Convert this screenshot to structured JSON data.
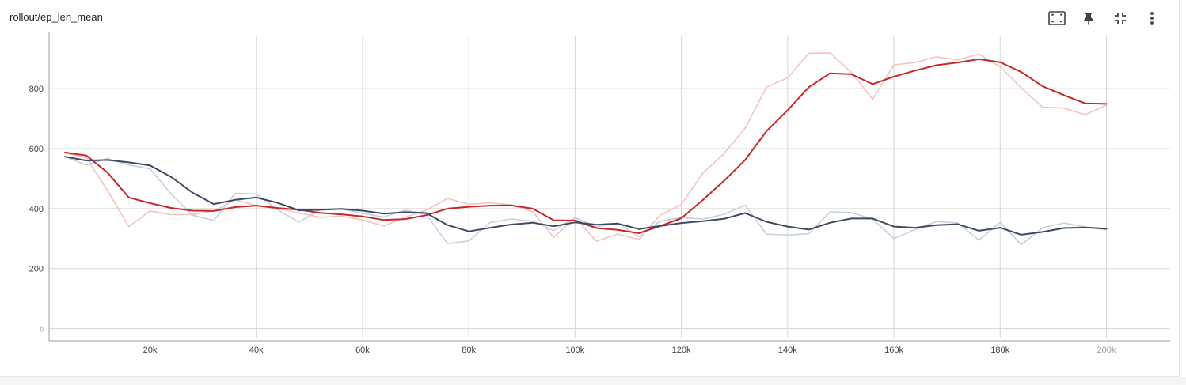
{
  "header": {
    "title": "rollout/ep_len_mean"
  },
  "toolbar": {
    "icons": [
      "fit-domain-icon",
      "pin-icon",
      "collapse-icon",
      "more-vert-icon"
    ]
  },
  "colors": {
    "red": "#c62828",
    "red_raw": "#f4c2c2",
    "slate": "#3d4a63",
    "slate_raw": "#c9cfdc",
    "grid": "#d6d6d6"
  },
  "chart_data": {
    "type": "line",
    "title": "rollout/ep_len_mean",
    "xlabel": "",
    "ylabel": "",
    "xlim": [
      1000,
      212000
    ],
    "ylim": [
      -30,
      990
    ],
    "x_ticks": [
      20000,
      40000,
      60000,
      80000,
      100000,
      120000,
      140000,
      160000,
      180000,
      200000
    ],
    "x_tick_labels": [
      "20k",
      "40k",
      "60k",
      "80k",
      "100k",
      "120k",
      "140k",
      "160k",
      "180k",
      "200k"
    ],
    "y_ticks": [
      0,
      200,
      400,
      600,
      800
    ],
    "y_tick_labels": [
      "0",
      "200",
      "400",
      "600",
      "800"
    ],
    "grid": true,
    "x": [
      4000,
      8000,
      12000,
      16000,
      20000,
      24000,
      28000,
      32000,
      36000,
      40000,
      44000,
      48000,
      52000,
      56000,
      60000,
      64000,
      68000,
      72000,
      76000,
      80000,
      84000,
      88000,
      92000,
      96000,
      100000,
      104000,
      108000,
      112000,
      116000,
      120000,
      124000,
      128000,
      132000,
      136000,
      140000,
      144000,
      148000,
      152000,
      156000,
      160000,
      164000,
      168000,
      172000,
      176000,
      180000,
      184000,
      188000,
      192000,
      196000,
      200000
    ],
    "series": [
      {
        "kind": "smoothed",
        "color": "#c62828",
        "values": [
          587,
          577,
          520,
          437,
          418,
          402,
          393,
          392,
          405,
          410,
          402,
          396,
          386,
          381,
          374,
          362,
          365,
          378,
          400,
          406,
          410,
          411,
          400,
          361,
          360,
          335,
          329,
          318,
          342,
          368,
          428,
          492,
          562,
          658,
          728,
          805,
          851,
          848,
          815,
          840,
          860,
          878,
          887,
          898,
          888,
          855,
          808,
          778,
          751,
          749
        ]
      },
      {
        "kind": "raw",
        "color": "#f4c2c2",
        "values": [
          585,
          570,
          460,
          340,
          392,
          380,
          380,
          392,
          430,
          410,
          400,
          386,
          371,
          375,
          362,
          342,
          371,
          395,
          434,
          414,
          419,
          412,
          390,
          304,
          370,
          291,
          315,
          297,
          378,
          414,
          517,
          583,
          668,
          805,
          836,
          918,
          919,
          854,
          765,
          879,
          887,
          906,
          896,
          915,
          873,
          802,
          738,
          735,
          713,
          745
        ]
      },
      {
        "kind": "smoothed",
        "color": "#3d4a63",
        "values": [
          573,
          560,
          562,
          554,
          544,
          505,
          453,
          415,
          429,
          437,
          419,
          394,
          396,
          399,
          393,
          383,
          388,
          385,
          345,
          324,
          336,
          347,
          353,
          341,
          354,
          346,
          350,
          332,
          342,
          352,
          358,
          366,
          385,
          356,
          340,
          330,
          353,
          367,
          367,
          340,
          336,
          345,
          348,
          326,
          336,
          313,
          322,
          335,
          337,
          333
        ]
      },
      {
        "kind": "raw",
        "color": "#c9cfdc",
        "values": [
          573,
          545,
          567,
          545,
          533,
          448,
          378,
          360,
          451,
          449,
          396,
          355,
          396,
          399,
          384,
          372,
          395,
          380,
          283,
          292,
          354,
          365,
          358,
          327,
          370,
          339,
          352,
          306,
          358,
          370,
          365,
          381,
          411,
          315,
          312,
          316,
          389,
          387,
          365,
          300,
          330,
          357,
          352,
          295,
          354,
          280,
          336,
          352,
          339,
          329
        ]
      }
    ]
  }
}
